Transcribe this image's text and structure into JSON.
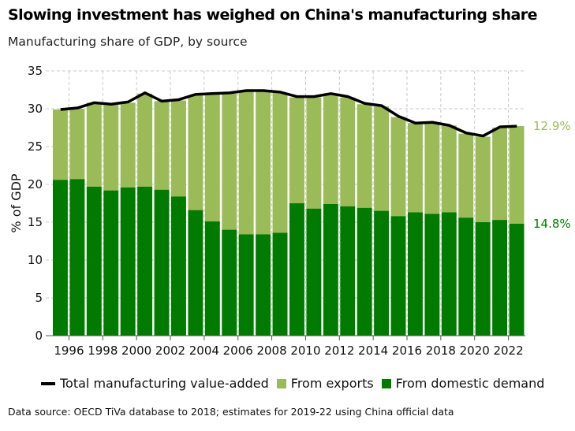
{
  "title": "Slowing investment has weighed on China's manufacturing share",
  "subtitle": "Manufacturing share of GDP, by source",
  "source": "Data source: OECD TiVa database to 2018; estimates for 2019-22 using China official data",
  "legend": {
    "total": "Total manufacturing value-added",
    "exports": "From exports",
    "domestic": "From domestic demand"
  },
  "colors": {
    "exports": "#9bbb59",
    "domestic": "#007a00",
    "total": "#000000"
  },
  "end_labels": {
    "exports": "12.9%",
    "domestic": "14.8%"
  },
  "chart_data": {
    "type": "bar",
    "stacked": true,
    "ylabel": "% of GDP",
    "ylim": [
      0,
      35
    ],
    "yticks": [
      "0",
      "5",
      "10",
      "15",
      "20",
      "25",
      "30",
      "35"
    ],
    "xticks": [
      "1996",
      "1998",
      "2000",
      "2002",
      "2004",
      "2006",
      "2008",
      "2010",
      "2012",
      "2014",
      "2016",
      "2018",
      "2020",
      "2022"
    ],
    "grid": true,
    "legend_position": "bottom",
    "categories": [
      1995,
      1996,
      1997,
      1998,
      1999,
      2000,
      2001,
      2002,
      2003,
      2004,
      2005,
      2006,
      2007,
      2008,
      2009,
      2010,
      2011,
      2012,
      2013,
      2014,
      2015,
      2016,
      2017,
      2018,
      2019,
      2020,
      2021,
      2022
    ],
    "series": [
      {
        "name": "From domestic demand",
        "type": "bar",
        "values": [
          20.6,
          20.7,
          19.7,
          19.2,
          19.6,
          19.7,
          19.3,
          18.4,
          16.6,
          15.1,
          14.0,
          13.4,
          13.4,
          13.6,
          17.5,
          16.8,
          17.4,
          17.1,
          16.9,
          16.5,
          15.8,
          16.3,
          16.1,
          16.3,
          15.6,
          15.0,
          15.3,
          14.8
        ]
      },
      {
        "name": "From exports",
        "type": "bar",
        "values": [
          9.3,
          9.3,
          11.1,
          11.3,
          11.2,
          12.3,
          11.7,
          12.7,
          15.2,
          16.8,
          18.0,
          18.9,
          18.9,
          18.5,
          14.0,
          14.7,
          14.5,
          14.4,
          13.7,
          13.8,
          13.1,
          11.8,
          12.0,
          11.5,
          11.1,
          11.3,
          12.2,
          12.9
        ]
      },
      {
        "name": "Total manufacturing value-added",
        "type": "line",
        "values": [
          29.9,
          30.1,
          30.8,
          30.6,
          30.9,
          32.1,
          31.0,
          31.2,
          31.9,
          32.0,
          32.1,
          32.4,
          32.4,
          32.2,
          31.6,
          31.6,
          32.0,
          31.6,
          30.7,
          30.4,
          29.0,
          28.1,
          28.2,
          27.8,
          26.8,
          26.4,
          27.6,
          27.7
        ]
      }
    ]
  }
}
